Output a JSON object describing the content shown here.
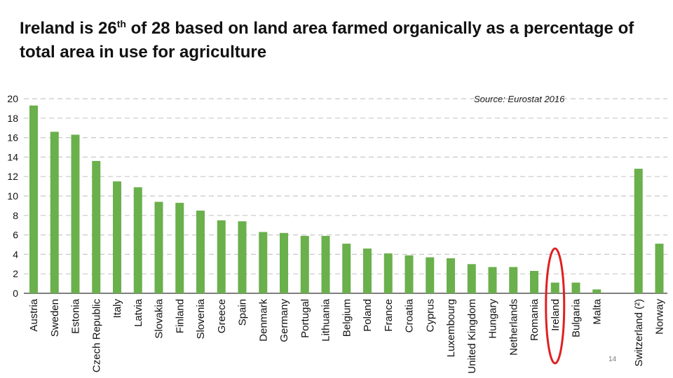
{
  "slide": {
    "title_part1": "Ireland is 26",
    "title_sup": "th",
    "title_part2": " of 28 based on land area farmed organically as a percentage of total area in use for agriculture",
    "source": "Source: Eurostat 2016",
    "page_number": "14"
  },
  "chart_data": {
    "type": "bar",
    "title": "",
    "xlabel": "",
    "ylabel": "",
    "ylim": [
      0,
      20
    ],
    "yticks": [
      0,
      2,
      4,
      6,
      8,
      10,
      12,
      14,
      16,
      18,
      20
    ],
    "grid": true,
    "bar_color": "#6ab04c",
    "highlight": {
      "category": "Ireland",
      "color": "#e02020"
    },
    "categories": [
      "Austria",
      "Sweden",
      "Estonia",
      "Czech Republic",
      "Italy",
      "Latvia",
      "Slovakia",
      "Finland",
      "Slovenia",
      "Greece",
      "Spain",
      "Denmark",
      "Germany",
      "Portugal",
      "Lithuania",
      "Belgium",
      "Poland",
      "France",
      "Croatia",
      "Cyprus",
      "Luxembourg",
      "United Kingdom",
      "Hungary",
      "Netherlands",
      "Romania",
      "Ireland",
      "Bulgaria",
      "Malta",
      "",
      "Switzerland (²)",
      "Norway"
    ],
    "values": [
      19.3,
      16.6,
      16.3,
      13.6,
      11.5,
      10.9,
      9.4,
      9.3,
      8.5,
      7.5,
      7.4,
      6.3,
      6.2,
      5.9,
      5.9,
      5.1,
      4.6,
      4.1,
      3.9,
      3.7,
      3.6,
      3.0,
      2.7,
      2.7,
      2.3,
      1.1,
      1.1,
      0.4,
      null,
      12.8,
      5.1
    ]
  }
}
